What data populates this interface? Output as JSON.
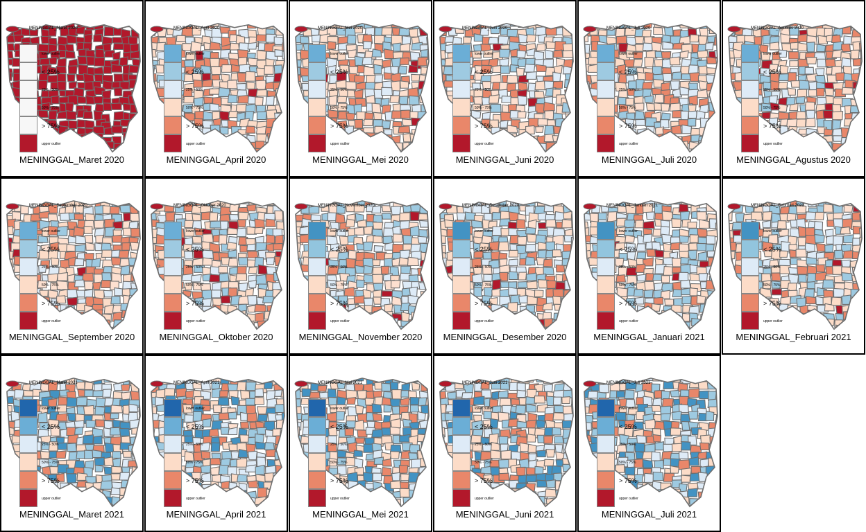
{
  "panels": [
    {
      "title": "MENINGGAL_Maret 2020",
      "subtitle": "MENINGGAL_Maret 2020",
      "scheme": "flat"
    },
    {
      "title": "MENINGGAL_April 2020",
      "subtitle": "MENINGGAL_April 2020",
      "scheme": "mixed"
    },
    {
      "title": "MENINGGAL_Mei 2020",
      "subtitle": "MENINGGAL_Mei 2020",
      "scheme": "mixed"
    },
    {
      "title": "MENINGGAL_Juni 2020",
      "subtitle": "MENINGGAL_Juni 2020",
      "scheme": "mixed"
    },
    {
      "title": "MENINGGAL_Juli 2020",
      "subtitle": "MENINGGAL_Juli 2020",
      "scheme": "mixed"
    },
    {
      "title": "MENINGGAL_Agustus 2020",
      "subtitle": "MENINGGAL_Agustus 2020",
      "scheme": "mixed"
    },
    {
      "title": "MENINGGAL_September 2020",
      "subtitle": "MENINGGAL_September 2020",
      "scheme": "mixed"
    },
    {
      "title": "MENINGGAL_Oktober 2020",
      "subtitle": "MENINGGAL_Oktober 2020",
      "scheme": "mixed"
    },
    {
      "title": "MENINGGAL_November 2020",
      "subtitle": "MENINGGAL_November 2020",
      "scheme": "mixedBlue"
    },
    {
      "title": "MENINGGAL_Desember 2020",
      "subtitle": "MENINGGAL_Desember 2020",
      "scheme": "mixedBlue"
    },
    {
      "title": "MENINGGAL_Januari 2021",
      "subtitle": "MENINGGAL_Januari 2021",
      "scheme": "mixedBlue"
    },
    {
      "title": "MENINGGAL_Februari 2021",
      "subtitle": "MENINGGAL_Februari 2021",
      "scheme": "mixedBlue"
    },
    {
      "title": "MENINGGAL_Maret 2021",
      "subtitle": "MENINGGAL_Maret 2021",
      "scheme": "dark"
    },
    {
      "title": "MENINGGAL_April 2021",
      "subtitle": "MENINGGAL_April 2021",
      "scheme": "dark"
    },
    {
      "title": "MENINGGAL_Mei 2021",
      "subtitle": "MENINGGAL_Mei 2021",
      "scheme": "dark"
    },
    {
      "title": "MENINGGAL_Juni 2021",
      "subtitle": "MENINGGAL_Juni 2021",
      "scheme": "dark"
    },
    {
      "title": "MENINGGAL_Juli 2021",
      "subtitle": "MENINGGAL_Juli 2021",
      "scheme": "dark"
    }
  ],
  "legend": {
    "labels": [
      "lower outlier",
      "< 25%",
      "25% - 50%",
      "50% - 75%",
      "> 75%",
      "upper outlier"
    ],
    "colors_standard": [
      "#6baed6",
      "#9ecae1",
      "#deebf7",
      "#fcdcc8",
      "#e9876a",
      "#b2182b"
    ],
    "colors_flat": [
      "#f7f7f7",
      "#f7f7f7",
      "#f7f7f7",
      "#f7f7f7",
      "#f7f7f7",
      "#b2182b"
    ],
    "colors_blue": [
      "#4393c3",
      "#92c5de",
      "#deebf7",
      "#fcdcc8",
      "#e9876a",
      "#b2182b"
    ],
    "colors_dark": [
      "#2166ac",
      "#6baed6",
      "#deebf7",
      "#fcdcc8",
      "#e9876a",
      "#b2182b"
    ]
  },
  "colors": {
    "border": "#6e6e6e",
    "upper_outlier": "#b2182b",
    "light_red": "#fcdcc8",
    "mid_red": "#e9876a",
    "light_blue": "#deebf7",
    "mid_blue": "#9ecae1",
    "dark_blue": "#4393c3"
  }
}
